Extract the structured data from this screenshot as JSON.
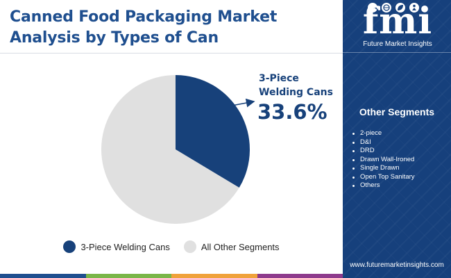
{
  "title": "Canned Food Packaging Market Analysis by Types of Can",
  "chart_data": {
    "type": "pie",
    "slices": [
      {
        "name": "3-Piece Welding Cans",
        "value": 33.6,
        "color": "#17417a"
      },
      {
        "name": "All Other Segments",
        "value": 66.4,
        "color": "#e0e0e0"
      }
    ],
    "callout": {
      "label": "3-Piece Welding Cans",
      "value": "33.6%"
    },
    "legend": {
      "placement": "bottom",
      "items": [
        {
          "label": "3-Piece Welding Cans",
          "color": "#17417a"
        },
        {
          "label": "All Other Segments",
          "color": "#e0e0e0"
        }
      ]
    }
  },
  "sidebar": {
    "brand": "fmi",
    "brand_caption": "Future Market Insights",
    "segments_title": "Other Segments",
    "segments": [
      "2-piece",
      "D&I",
      "DRD",
      "Drawn Wall-Ironed",
      "Single Drawn",
      "Open Top Sanitary",
      "Others"
    ],
    "website": "www.futuremarketinsights.com"
  },
  "colors": {
    "primary": "#17417a",
    "panel": "#16407c",
    "other": "#e0e0e0",
    "bottom_bar": [
      "#1f4f8f",
      "#7ab648",
      "#f0a23b",
      "#8e3a8c"
    ]
  }
}
